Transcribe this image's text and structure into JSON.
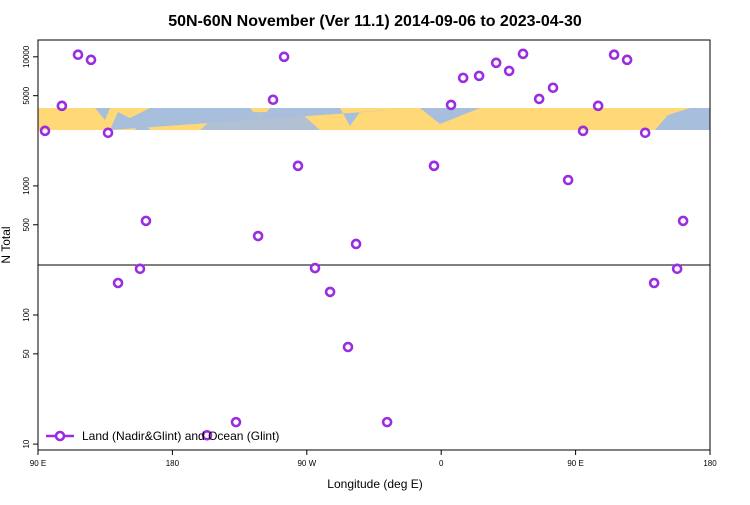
{
  "chart_data": {
    "type": "scatter",
    "title": "50N-60N November (Ver 11.1)   2014-09-06 to 2023-04-30",
    "x_label": "Longitude (deg E)",
    "y_label": "N Total",
    "xlim": [
      90,
      540
    ],
    "ylim": [
      9,
      13500
    ],
    "log_y": true,
    "xticks": [
      {
        "value": 90,
        "label": "90 E"
      },
      {
        "value": 180,
        "label": "180"
      },
      {
        "value": 270,
        "label": "90 W"
      },
      {
        "value": 360,
        "label": "0"
      },
      {
        "value": 450,
        "label": "90 E"
      },
      {
        "value": 540,
        "label": "180"
      }
    ],
    "yticks": [
      10,
      50,
      100,
      500,
      1000,
      5000,
      10000
    ],
    "hline": 244,
    "legend": "bottom-left",
    "series": [
      {
        "name": "Land (Nadir&Glint) and Ocean (Glint)",
        "color": "#9b2de0",
        "x": [
          94.7,
          106,
          116.8,
          125.5,
          136.9,
          143.6,
          158.3,
          162.3,
          203.2,
          222.6,
          237.4,
          247.4,
          254.8,
          264.1,
          275.5,
          285.6,
          297.6,
          303.0,
          323.8,
          355.2,
          366.6,
          374.7,
          385.4,
          396.8,
          405.5,
          414.8,
          425.6,
          434.9,
          445.0,
          455.0,
          465.1,
          475.8,
          484.5,
          496.6,
          502.6,
          518.0,
          522.0
        ],
        "values": [
          2670,
          4170,
          10380,
          9480,
          2580,
          177,
          228,
          536,
          11.7,
          14.8,
          409,
          4650,
          10000,
          1430,
          231,
          151,
          56.5,
          355,
          14.8,
          1430,
          4240,
          6870,
          7120,
          8980,
          7780,
          10550,
          4720,
          5760,
          1110,
          2670,
          4170,
          10380,
          9480,
          2580,
          177,
          228,
          536
        ]
      }
    ]
  }
}
